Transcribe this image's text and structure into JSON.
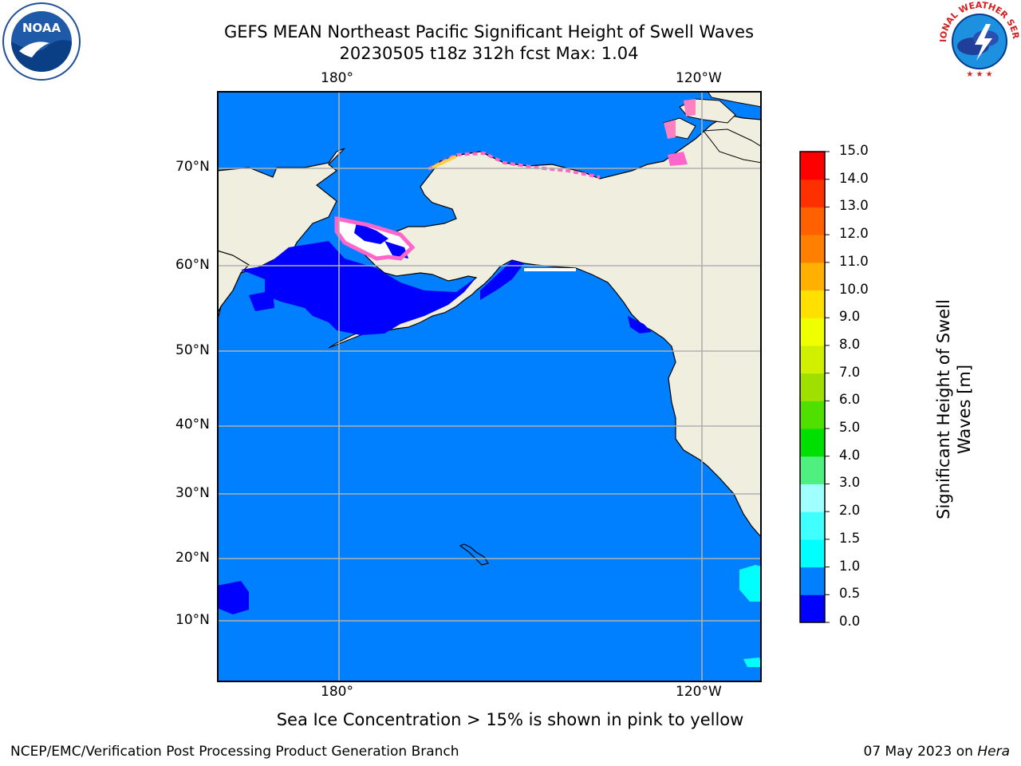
{
  "title": {
    "line1": "GEFS MEAN Northeast Pacific Significant Height of Swell Waves",
    "line2": "20230505 t18z 312h fcst   Max: 1.04"
  },
  "logos": {
    "left": "noara-logo",
    "right": "national-weather-service-logo",
    "nws_text": "NATIONAL WEATHER SERVICE"
  },
  "map": {
    "lon_labels_top": [
      "180°",
      "120°W"
    ],
    "lon_labels_bottom": [
      "180°",
      "120°W"
    ],
    "lat_labels": [
      "70°N",
      "60°N",
      "50°N",
      "40°N",
      "30°N",
      "20°N",
      "10°N"
    ],
    "colors": {
      "land": "#efeedf",
      "ocean": "#0080ff",
      "low_swell": "#0000ff",
      "grid": "#b0b0b0",
      "ice": "#ff66cc"
    }
  },
  "colorbar": {
    "title": "Significant Height of Swell Waves [m]",
    "title_line1": "Significant Height of Swell",
    "title_line2": "Waves [m]",
    "tick_labels": [
      "0.0",
      "0.5",
      "1.0",
      "1.5",
      "2.0",
      "3.0",
      "4.0",
      "5.0",
      "6.0",
      "7.0",
      "8.0",
      "9.0",
      "10.0",
      "11.0",
      "12.0",
      "13.0",
      "14.0",
      "15.0"
    ],
    "colors": [
      "#0000ff",
      "#0080ff",
      "#00ffff",
      "#40ffff",
      "#a0ffff",
      "#50f080",
      "#00e000",
      "#50e000",
      "#a0e000",
      "#d0f000",
      "#f0ff00",
      "#ffe000",
      "#ffb000",
      "#ff8000",
      "#ff6000",
      "#ff3000",
      "#ff0000"
    ]
  },
  "note": "Sea Ice Concentration > 15% is shown in pink to yellow",
  "footer": {
    "left": "NCEP/EMC/Verification Post Processing Product Generation Branch",
    "date": "07 May 2023 on ",
    "machine": "Hera"
  }
}
